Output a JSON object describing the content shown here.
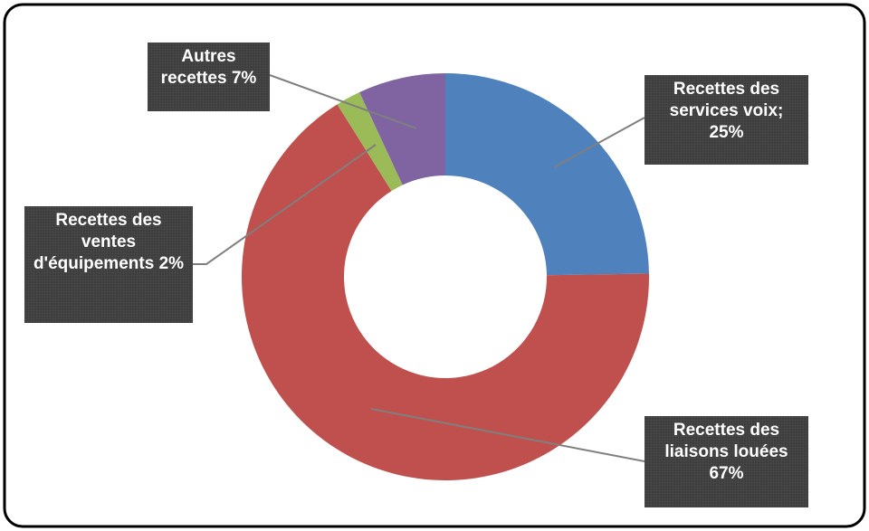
{
  "chart_data": {
    "type": "pie",
    "categories": [
      "Recettes des services voix;",
      "Recettes des liaisons louées",
      "Recettes des ventes d'équipements",
      "Autres recettes "
    ],
    "values": [
      25,
      67,
      2,
      7
    ],
    "value_labels": [
      "25%",
      "67%",
      "2%",
      "7%"
    ],
    "colors": [
      "#4f81bd",
      "#c0504d",
      "#9bbb59",
      "#8064a2"
    ]
  }
}
